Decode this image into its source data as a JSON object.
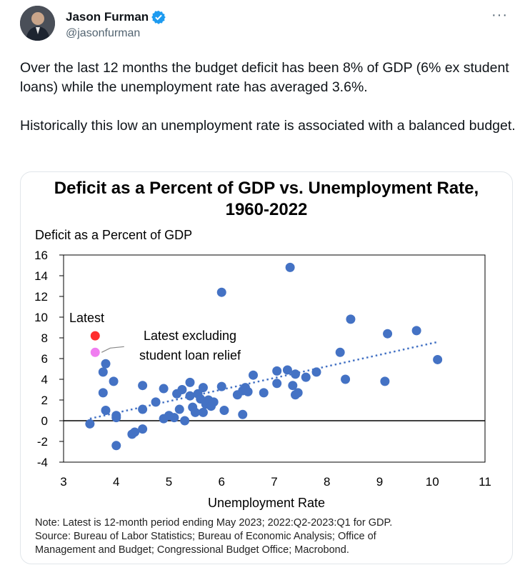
{
  "author": {
    "name": "Jason Furman",
    "handle": "@jasonfurman",
    "verified_color": "#1d9bf0"
  },
  "menu": {
    "more_label": "···"
  },
  "tweet": {
    "paragraph1": "Over the last 12 months the budget deficit has been 8% of GDP (6% ex student loans) while the unemployment rate has averaged 3.6%.",
    "paragraph2": "Historically this low an unemployment rate is associated with a balanced budget."
  },
  "chart_data": {
    "type": "scatter",
    "title_line1": "Deficit as a Percent of GDP vs. Unemployment Rate,",
    "title_line2": "1960-2022",
    "ylabel": "Deficit as a Percent of GDP",
    "xlabel": "Unemployment Rate",
    "xlim": [
      3,
      11
    ],
    "ylim": [
      -4,
      16
    ],
    "xticks": [
      3,
      4,
      5,
      6,
      7,
      8,
      9,
      10,
      11
    ],
    "yticks": [
      16,
      14,
      12,
      10,
      8,
      6,
      4,
      2,
      0,
      -2,
      -4
    ],
    "point_color": "#4472c4",
    "trend_color": "#4472c4",
    "trendline": {
      "x": [
        3.5,
        10.1
      ],
      "y": [
        0.2,
        7.6
      ]
    },
    "points": [
      [
        3.5,
        -0.3
      ],
      [
        3.8,
        5.5
      ],
      [
        3.75,
        4.7
      ],
      [
        3.75,
        2.7
      ],
      [
        3.8,
        1.0
      ],
      [
        3.95,
        3.8
      ],
      [
        4.0,
        0.3
      ],
      [
        4.0,
        0.5
      ],
      [
        4.0,
        -2.4
      ],
      [
        4.3,
        -1.3
      ],
      [
        4.35,
        -1.1
      ],
      [
        4.5,
        -0.8
      ],
      [
        4.5,
        3.4
      ],
      [
        4.5,
        1.1
      ],
      [
        4.75,
        1.8
      ],
      [
        4.9,
        3.1
      ],
      [
        4.9,
        0.2
      ],
      [
        5.0,
        0.5
      ],
      [
        5.1,
        0.3
      ],
      [
        5.15,
        2.6
      ],
      [
        5.2,
        1.1
      ],
      [
        5.25,
        3.0
      ],
      [
        5.3,
        0.0
      ],
      [
        5.4,
        3.7
      ],
      [
        5.4,
        2.4
      ],
      [
        5.45,
        1.3
      ],
      [
        5.5,
        0.8
      ],
      [
        5.55,
        2.6
      ],
      [
        5.6,
        2.1
      ],
      [
        5.65,
        3.2
      ],
      [
        5.65,
        0.8
      ],
      [
        5.7,
        1.6
      ],
      [
        5.75,
        2.0
      ],
      [
        5.8,
        1.4
      ],
      [
        5.85,
        1.8
      ],
      [
        6.0,
        12.4
      ],
      [
        6.0,
        3.3
      ],
      [
        6.05,
        1.0
      ],
      [
        6.3,
        2.5
      ],
      [
        6.4,
        2.9
      ],
      [
        6.4,
        0.6
      ],
      [
        6.45,
        3.2
      ],
      [
        6.5,
        2.8
      ],
      [
        6.6,
        4.4
      ],
      [
        6.8,
        2.7
      ],
      [
        7.05,
        4.8
      ],
      [
        7.05,
        3.6
      ],
      [
        7.25,
        4.9
      ],
      [
        7.3,
        14.8
      ],
      [
        7.35,
        3.4
      ],
      [
        7.4,
        4.5
      ],
      [
        7.4,
        2.5
      ],
      [
        7.45,
        2.7
      ],
      [
        7.6,
        4.2
      ],
      [
        7.8,
        4.7
      ],
      [
        8.25,
        6.6
      ],
      [
        8.35,
        4.0
      ],
      [
        8.45,
        9.8
      ],
      [
        9.1,
        3.8
      ],
      [
        9.15,
        8.4
      ],
      [
        9.7,
        8.7
      ],
      [
        10.1,
        5.9
      ]
    ],
    "highlights": [
      {
        "label": "Latest",
        "x": 3.6,
        "y": 8.2,
        "color": "#ff2d2d"
      },
      {
        "label_line1": "Latest excluding",
        "label_line2": "student loan relief",
        "x": 3.6,
        "y": 6.6,
        "color": "#f07df0"
      }
    ],
    "note_lines": [
      "Note: Latest is 12-month period ending May 2023; 2022:Q2-2023:Q1 for GDP.",
      "Source: Bureau of Labor Statistics; Bureau of Economic Analysis; Office of",
      "Management and Budget; Congressional Budget Office; Macrobond."
    ]
  }
}
